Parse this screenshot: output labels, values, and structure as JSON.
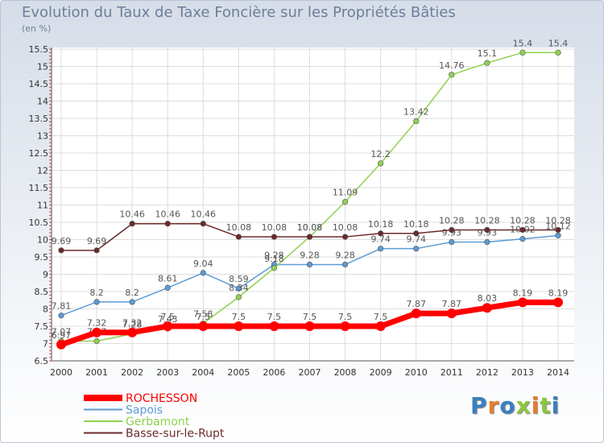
{
  "title": "Evolution du Taux de Taxe Foncière sur les Propriétés Bâties",
  "subtitle": "(en %)",
  "logo": "Proxiti",
  "chart_data": {
    "type": "line",
    "title": "Evolution du Taux de Taxe Foncière sur les Propriétés Bâties",
    "ylabel": "(en %)",
    "xlabel": "",
    "ylim": [
      6.5,
      15.5
    ],
    "yticks": [
      "6.5",
      "7",
      "7.5",
      "8",
      "8.5",
      "9",
      "9.5",
      "10",
      "10.5",
      "11",
      "11.5",
      "12",
      "12.5",
      "13",
      "13.5",
      "14",
      "14.5",
      "15",
      "15.5"
    ],
    "categories": [
      "2000",
      "2001",
      "2002",
      "2003",
      "2004",
      "2005",
      "2006",
      "2007",
      "2008",
      "2009",
      "2010",
      "2011",
      "2012",
      "2013",
      "2014"
    ],
    "series": [
      {
        "name": "ROCHESSON",
        "color": "#ff0000",
        "values": [
          6.97,
          7.32,
          7.32,
          7.5,
          7.5,
          7.5,
          7.5,
          7.5,
          7.5,
          7.5,
          7.87,
          7.87,
          8.03,
          8.19,
          8.19
        ]
      },
      {
        "name": "Sapois",
        "color": "#5b9bd5",
        "values": [
          7.81,
          8.2,
          8.2,
          8.61,
          9.04,
          8.59,
          9.28,
          9.28,
          9.28,
          9.74,
          9.74,
          9.93,
          9.93,
          10.02,
          10.12
        ]
      },
      {
        "name": "Gerbamont",
        "color": "#8fd14f",
        "values": [
          7.07,
          7.07,
          7.28,
          7.43,
          7.58,
          8.34,
          9.18,
          10.08,
          11.09,
          12.2,
          13.42,
          14.76,
          15.1,
          15.4,
          15.4
        ]
      },
      {
        "name": "Basse-sur-le-Rupt",
        "color": "#6b2a2a",
        "values": [
          9.69,
          9.69,
          10.46,
          10.46,
          10.46,
          10.08,
          10.08,
          10.08,
          10.08,
          10.18,
          10.18,
          10.28,
          10.28,
          10.28,
          10.28
        ]
      }
    ]
  }
}
